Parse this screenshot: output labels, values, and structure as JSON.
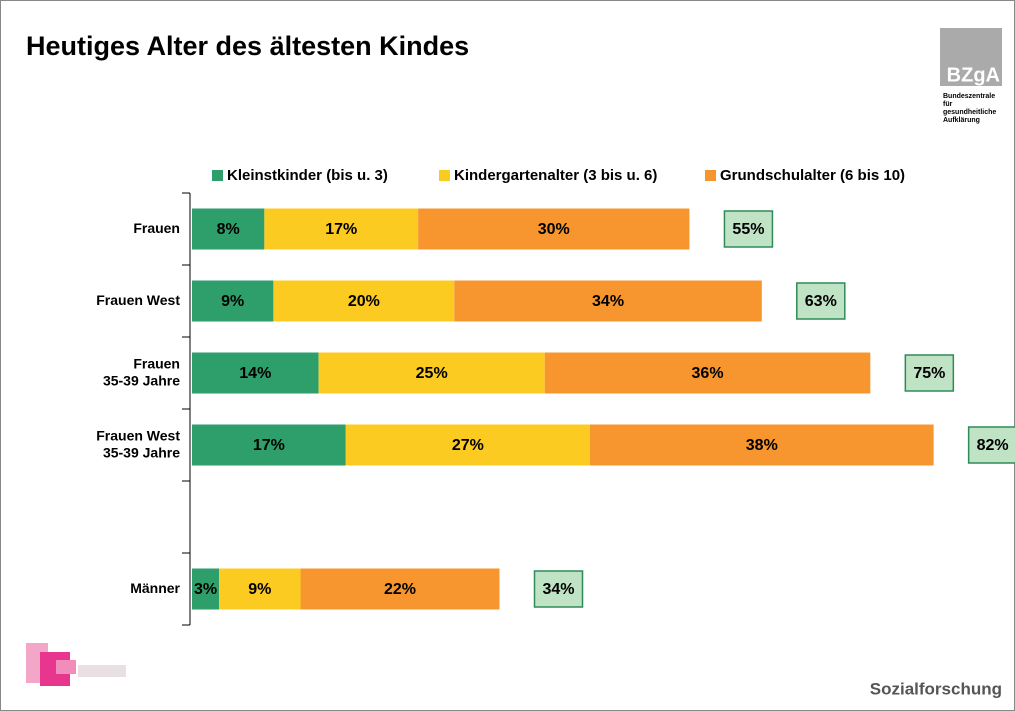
{
  "chart_data": {
    "type": "stacked-barh",
    "title": "Heutiges Alter des ältesten Kindes",
    "categories": [
      [
        "Frauen"
      ],
      [
        "Frauen West"
      ],
      [
        "Frauen",
        "35-39 Jahre"
      ],
      [
        "Frauen West",
        "35-39 Jahre"
      ],
      null,
      [
        "Männer"
      ]
    ],
    "series": [
      {
        "name": "Kleinstkinder (bis u. 3)",
        "color": "#2e9e6b",
        "values": [
          8,
          9,
          14,
          17,
          null,
          3
        ],
        "value_labels": [
          "8%",
          "9%",
          "14%",
          "17%",
          null,
          "3%"
        ]
      },
      {
        "name": "Kindergartenalter (3 bis u. 6)",
        "color": "#fccb22",
        "values": [
          17,
          20,
          25,
          27,
          null,
          9
        ],
        "value_labels": [
          "17%",
          "20%",
          "25%",
          "27%",
          null,
          "9%"
        ]
      },
      {
        "name": "Grundschulalter (6 bis 10)",
        "color": "#f7962f",
        "values": [
          30,
          34,
          36,
          38,
          null,
          22
        ],
        "value_labels": [
          "30%",
          "34%",
          "36%",
          "38%",
          null,
          "22%"
        ]
      }
    ],
    "totals": [
      55,
      63,
      75,
      82,
      null,
      34
    ],
    "total_labels": [
      "55%",
      "63%",
      "75%",
      "82%",
      null,
      "34%"
    ],
    "xlim": [
      0,
      90
    ],
    "logo": {
      "text": "BZgA",
      "subtitle": [
        "Bundeszentrale",
        "für",
        "gesundheitliche",
        "Aufklärung"
      ]
    },
    "footer": "Sozialforschung"
  }
}
